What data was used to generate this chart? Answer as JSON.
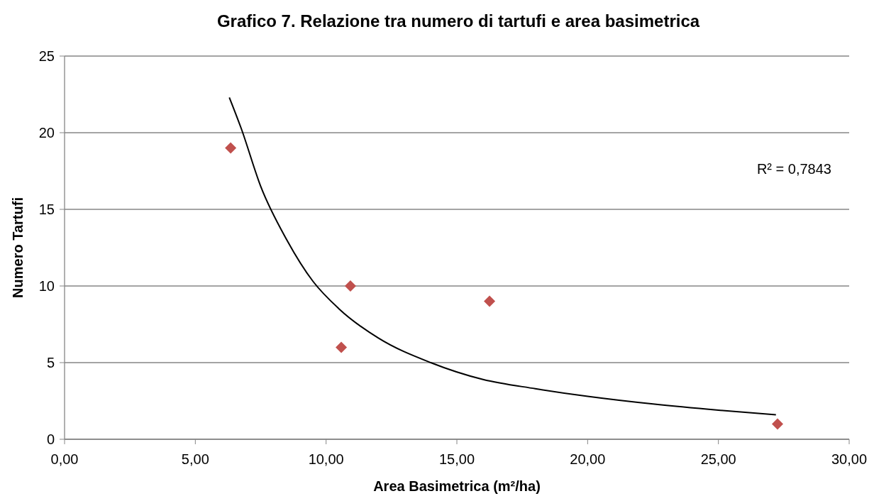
{
  "chart_data": {
    "type": "scatter",
    "title": "Grafico 7. Relazione tra numero di tartufi e area basimetrica",
    "xlabel": "Area Basimetrica (m²/ha)",
    "ylabel": "Numero Tartufi",
    "series": [
      {
        "color": "#c0504d",
        "marker": "diamond",
        "x": [
          6.35,
          10.93,
          10.58,
          16.25,
          27.26
        ],
        "values": [
          19,
          10,
          6,
          9,
          1
        ]
      },
      {
        "type": "line",
        "color": "#000000",
        "marker": "none",
        "x": [
          6.3,
          6.75,
          7.5,
          8.5,
          9.5,
          10.5,
          12,
          14,
          16,
          18,
          20,
          22.5,
          25,
          27.2
        ],
        "values": [
          22.3,
          20.3,
          16.5,
          13,
          10.3,
          8.5,
          6.6,
          5,
          3.9,
          3.3,
          2.8,
          2.3,
          1.9,
          1.6
        ]
      }
    ],
    "annotations": [
      "R² = 0,7843"
    ],
    "xlim": [
      0,
      30
    ],
    "xticks": [
      {
        "value": 0,
        "label": "0,00"
      },
      {
        "value": 5,
        "label": "5,00"
      },
      {
        "value": 10,
        "label": "10,00"
      },
      {
        "value": 15,
        "label": "15,00"
      },
      {
        "value": 20,
        "label": "20,00"
      },
      {
        "value": 25,
        "label": "25,00"
      },
      {
        "value": 30,
        "label": "30,00"
      }
    ],
    "ylim": [
      0,
      25
    ],
    "yticks": [
      0,
      5,
      10,
      15,
      20,
      25
    ],
    "grid": "y"
  }
}
